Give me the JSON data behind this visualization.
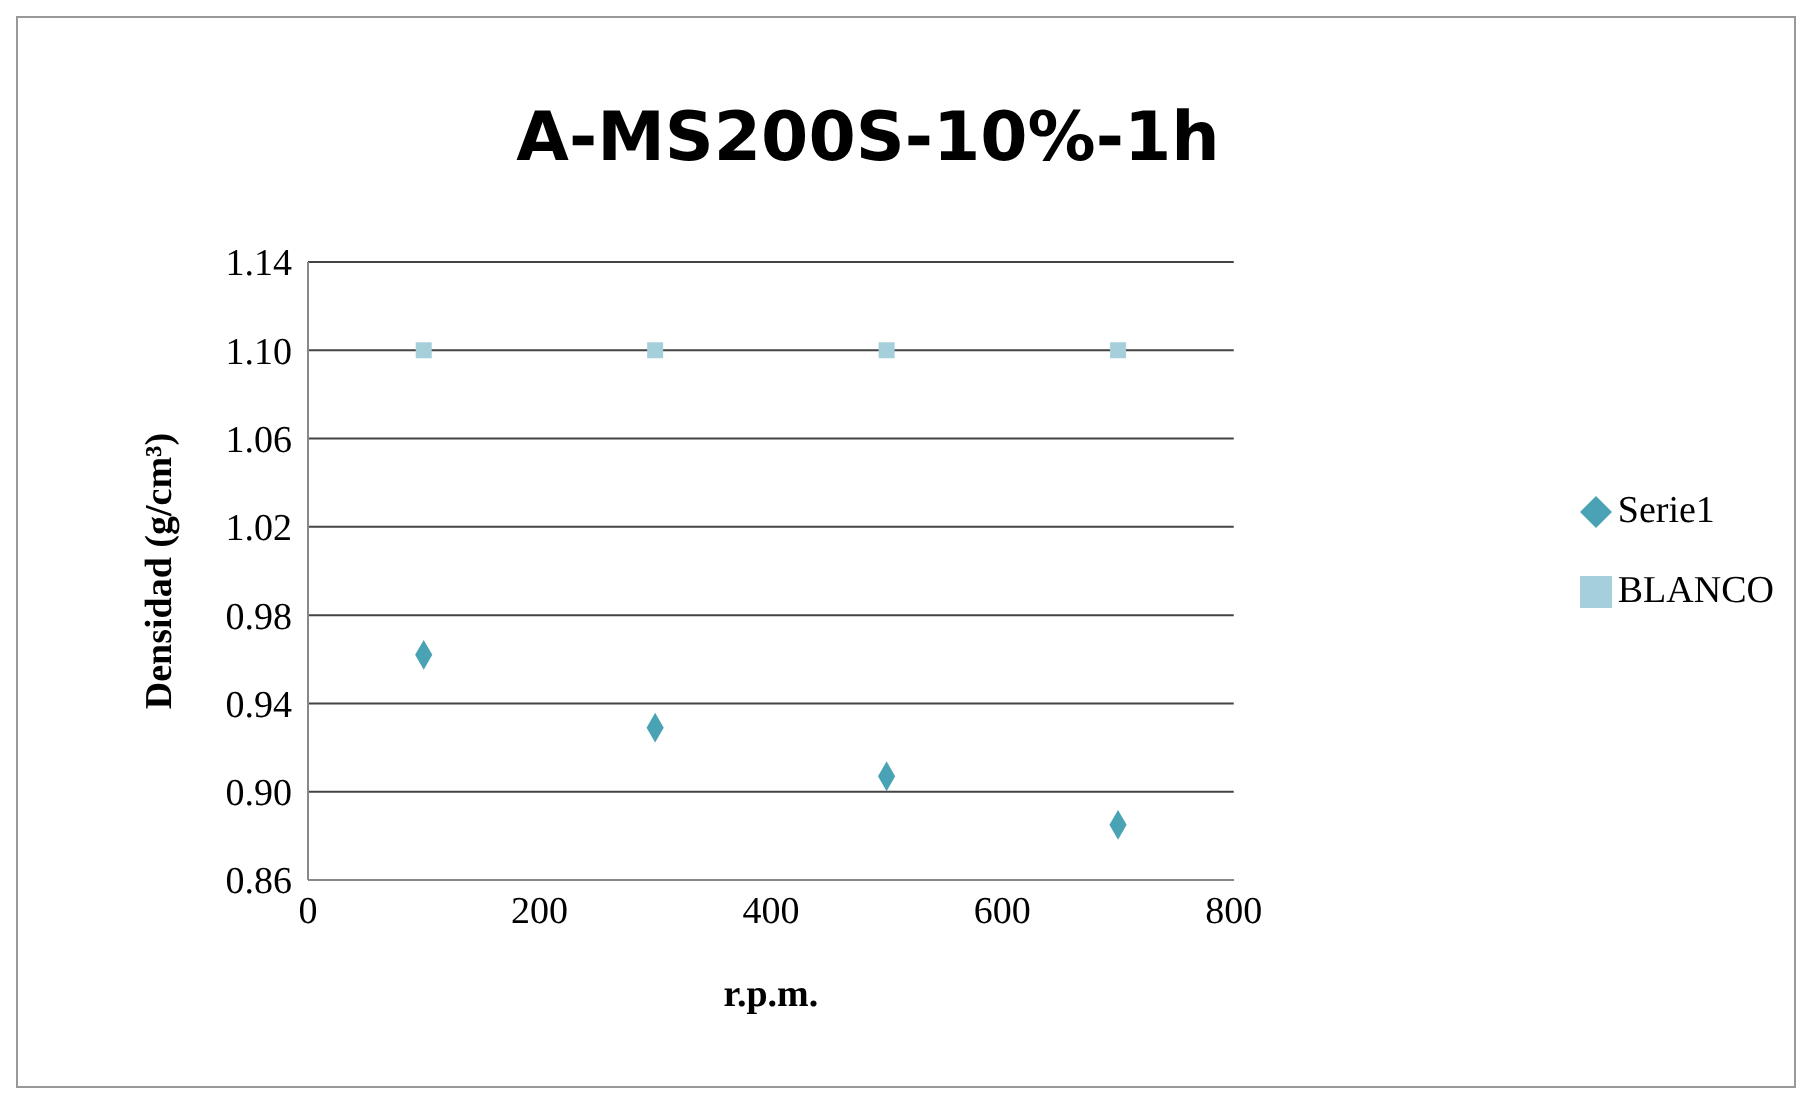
{
  "chart_data": {
    "type": "scatter",
    "title": "A-MS200S-10%-1h",
    "xlabel": "r.p.m.",
    "ylabel": "Densidad (g/cm³)",
    "x": [
      100,
      300,
      500,
      700
    ],
    "series": [
      {
        "name": "Serie1",
        "color": "#4aa3b5",
        "marker": "diamond",
        "values": [
          0.962,
          0.929,
          0.907,
          0.885
        ]
      },
      {
        "name": "BLANCO",
        "color": "#a6cfdc",
        "marker": "square",
        "values": [
          1.1,
          1.1,
          1.1,
          1.1
        ]
      }
    ],
    "xlim": [
      0,
      800
    ],
    "xticks": [
      0,
      200,
      400,
      600,
      800
    ],
    "ylim": [
      0.86,
      1.14
    ],
    "yticks": [
      0.86,
      {
        "value": 0.9,
        "label": "0.90"
      },
      0.94,
      0.98,
      1.02,
      1.06,
      {
        "value": 1.1,
        "label": "1.10"
      },
      1.14
    ],
    "grid": "y",
    "legend": "right"
  }
}
